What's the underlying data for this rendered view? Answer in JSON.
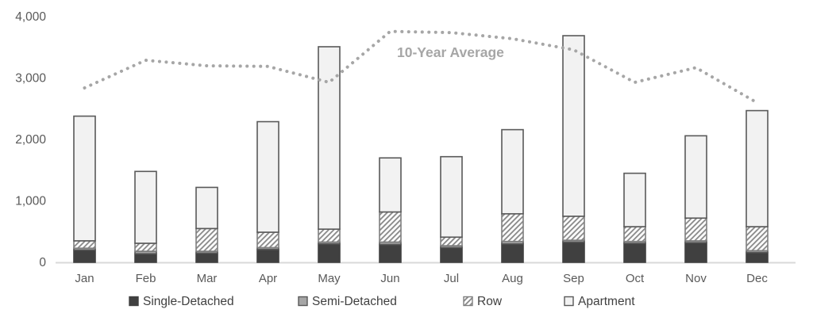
{
  "chart_data": {
    "type": "bar",
    "subtype": "stacked-bars-with-average-line",
    "title": "",
    "xlabel": "",
    "ylabel": "",
    "categories": [
      "Jan",
      "Feb",
      "Mar",
      "Apr",
      "May",
      "Jun",
      "Jul",
      "Aug",
      "Sep",
      "Oct",
      "Nov",
      "Dec"
    ],
    "series": [
      {
        "name": "Single-Detached",
        "type": "bar",
        "fill": "#404040",
        "border": "#404040",
        "pattern": "solid",
        "values": [
          200,
          140,
          150,
          210,
          300,
          290,
          240,
          300,
          330,
          310,
          320,
          160
        ]
      },
      {
        "name": "Semi-Detached",
        "type": "bar",
        "fill": "#a6a6a6",
        "border": "#595959",
        "pattern": "solid",
        "values": [
          30,
          40,
          30,
          30,
          30,
          40,
          30,
          40,
          30,
          30,
          30,
          30
        ]
      },
      {
        "name": "Row",
        "type": "bar",
        "fill": "#ffffff",
        "border": "#7f7f7f",
        "pattern": "diagonal-hatch",
        "hatch_color": "#8c8c8c",
        "values": [
          120,
          130,
          370,
          250,
          210,
          490,
          140,
          450,
          390,
          240,
          370,
          390
        ]
      },
      {
        "name": "Apartment",
        "type": "bar",
        "fill": "#f2f2f2",
        "border": "#595959",
        "pattern": "solid",
        "values": [
          2030,
          1170,
          670,
          1800,
          2970,
          880,
          1310,
          1370,
          2940,
          870,
          1340,
          1890
        ]
      }
    ],
    "bar_totals": [
      2380,
      1480,
      1220,
      2290,
      3510,
      1700,
      1720,
      2160,
      3690,
      1450,
      2060,
      2470
    ],
    "line_series": {
      "name": "10-Year Average",
      "label_text": "10-Year Average",
      "color": "#a6a6a6",
      "style": "dotted",
      "values": [
        2840,
        3290,
        3200,
        3190,
        2930,
        3760,
        3740,
        3640,
        3460,
        2930,
        3170,
        2600
      ]
    },
    "y_axis": {
      "tick_labels": [
        "0",
        "1,000",
        "2,000",
        "3,000",
        "4,000"
      ],
      "tick_values": [
        0,
        1000,
        2000,
        3000,
        4000
      ],
      "lim": [
        0,
        4000
      ],
      "label_color": "#595959"
    },
    "x_axis": {
      "label_color": "#595959",
      "axis_line_color": "#d9d9d9"
    },
    "grid": false,
    "legend_position": "bottom",
    "legend": [
      "Single-Detached",
      "Semi-Detached",
      "Row",
      "Apartment"
    ],
    "legend_text_color": "#404040",
    "background": "#ffffff"
  }
}
